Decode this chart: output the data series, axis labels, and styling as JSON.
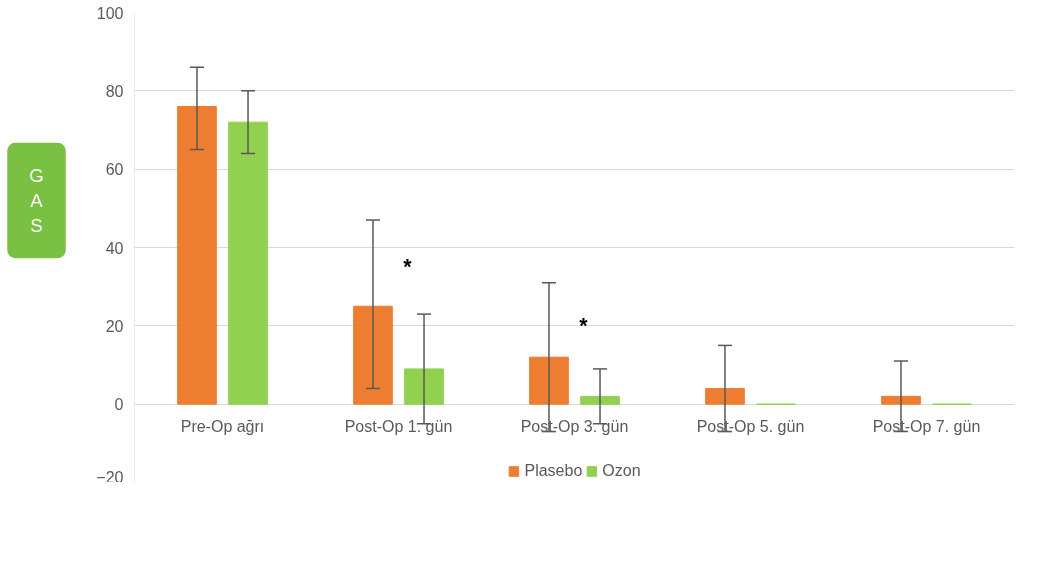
{
  "chart_data": {
    "type": "bar",
    "ylabel": "GAS",
    "categories": [
      "Pre-Op ağrı",
      "Post-Op 1. gün",
      "Post-Op 3. gün",
      "Post-Op 5. gün",
      "Post-Op 7. gün"
    ],
    "series": [
      {
        "name": "Plasebo",
        "color": "#ed7d31",
        "values": [
          76,
          25,
          12,
          4,
          2
        ],
        "errors": [
          [
            65,
            86
          ],
          [
            4,
            47
          ],
          [
            -7,
            31
          ],
          [
            -7,
            15
          ],
          [
            -7,
            11
          ]
        ]
      },
      {
        "name": "Ozon",
        "color": "#92d050",
        "values": [
          72,
          9,
          2,
          0,
          0
        ],
        "errors": [
          [
            64,
            80
          ],
          [
            -5,
            23
          ],
          [
            -5,
            9
          ],
          null,
          null
        ]
      }
    ],
    "annotations": [
      "*",
      "*"
    ],
    "ylim": [
      -20,
      100
    ],
    "yticks": [
      -20,
      0,
      20,
      40,
      60,
      80,
      100
    ],
    "grid": "y",
    "legend": "bottom"
  }
}
